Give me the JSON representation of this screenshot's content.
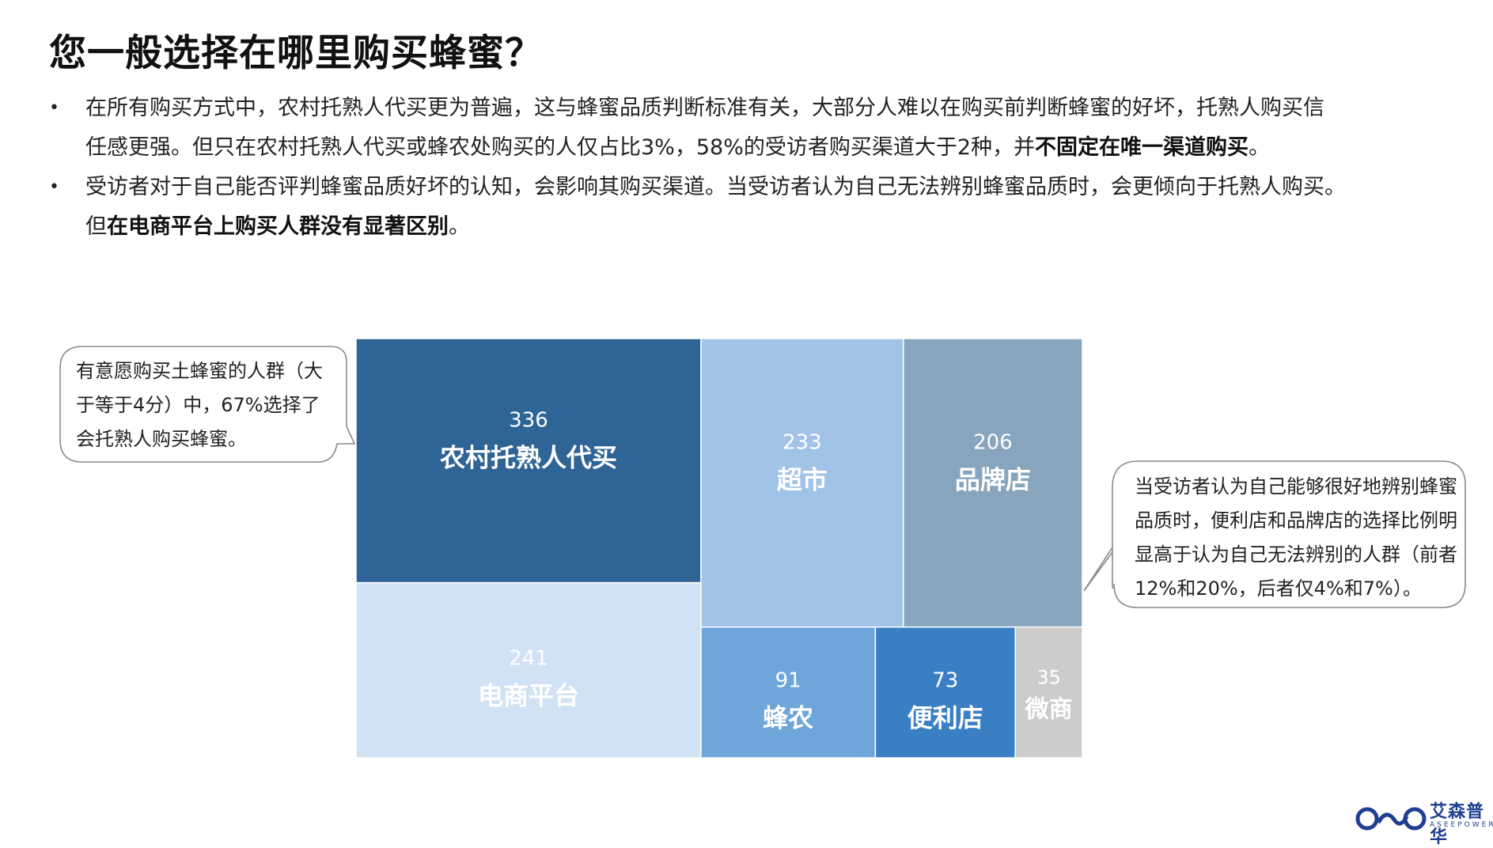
{
  "title": "您一般选择在哪里购买蜂蜜？",
  "bullets": [
    {
      "lines": [
        [
          {
            "text": "在所有购买方式中，农村托熟人代买更为普遍，这与蜂蜜品质判断标准有关，大部分人难以在购买前判断蜂蜜的好坏，托熟人购买信"
          }
        ],
        [
          {
            "text": "任感更强。但只在农村托熟人代买或蜂农处购买的人仅占比3%，58%的受访者购买渠道大于2种，并"
          },
          {
            "text": "不固定在唯一渠道购买",
            "bold": true
          },
          {
            "text": "。"
          }
        ]
      ]
    },
    {
      "lines": [
        [
          {
            "text": "受访者对于自己能否评判蜂蜜品质好坏的认知，会影响其购买渠道。当受访者认为自己无法辨别蜂蜜品质时，会更倾向于托熟人购买。"
          }
        ],
        [
          {
            "text": "但"
          },
          {
            "text": "在电商平台上购买人群没有显著区别",
            "bold": true
          },
          {
            "text": "。"
          }
        ]
      ]
    }
  ],
  "callout_left": {
    "lines": [
      "有意愿购买土蜂蜜的人群（大",
      "于等于4分）中，67%选择了",
      "会托熟人购买蜂蜜。"
    ]
  },
  "callout_right": {
    "lines": [
      "当受访者认为自己能够很好地辨别蜂蜜",
      "品质时，便利店和品牌店的选择比例明",
      "显高于认为自己无法辨别的人群（前者",
      "12%和20%，后者仅4%和7%）。"
    ]
  },
  "chart_data": {
    "type": "treemap",
    "items": [
      {
        "name": "农村托熟人代买",
        "value": 336,
        "color": "#2f6496",
        "text_color": "#ffffff"
      },
      {
        "name": "电商平台",
        "value": 241,
        "color": "#d0e2f3",
        "text_color": "#ffffff"
      },
      {
        "name": "超市",
        "value": 233,
        "color": "#a0c3e7",
        "text_color": "#ffffff"
      },
      {
        "name": "品牌店",
        "value": 206,
        "color": "#88a5be",
        "text_color": "#ffffff"
      },
      {
        "name": "蜂农",
        "value": 91,
        "color": "#6ea5da",
        "text_color": "#ffffff"
      },
      {
        "name": "便利店",
        "value": 73,
        "color": "#3a7fc4",
        "text_color": "#ffffff"
      },
      {
        "name": "微商",
        "value": 35,
        "color": "#cccccc",
        "text_color": "#ffffff"
      }
    ],
    "remainder_color": "#e2e2e2"
  },
  "logo": {
    "brand": "艾森普华",
    "sub": "ASEEPOWER"
  }
}
